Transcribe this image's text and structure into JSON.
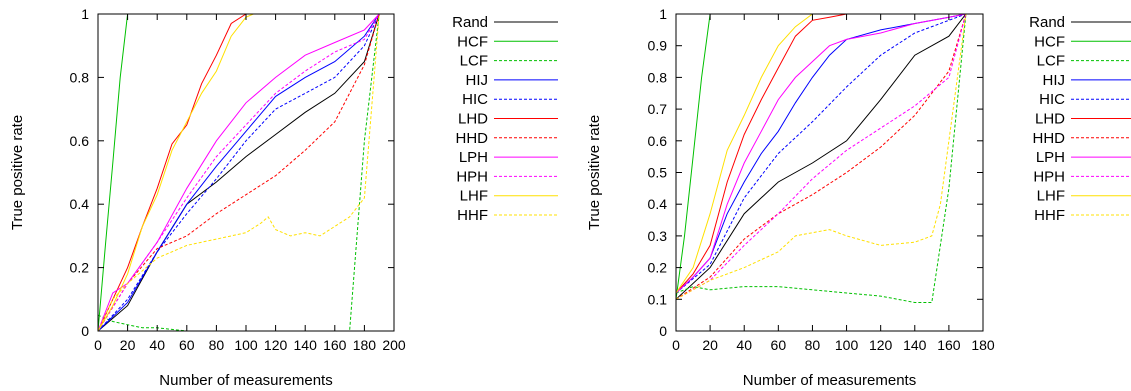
{
  "chart_data": [
    {
      "type": "line",
      "xlabel": "Number of measurements",
      "ylabel": "True positive rate",
      "xlim": [
        0,
        200
      ],
      "ylim": [
        0,
        1
      ],
      "xticks": [
        0,
        20,
        40,
        60,
        80,
        100,
        120,
        140,
        160,
        180,
        200
      ],
      "yticks": [
        0,
        0.2,
        0.4,
        0.6,
        0.8,
        1
      ],
      "ytick_labels": [
        "0",
        "0.2",
        "0.4",
        "0.6",
        "0.8",
        "1"
      ],
      "legend_position": "right",
      "grid": false,
      "series": [
        {
          "name": "Rand",
          "color": "#000000",
          "dash": "solid",
          "x": [
            0,
            20,
            40,
            60,
            80,
            100,
            120,
            140,
            160,
            180,
            190
          ],
          "y": [
            0,
            0.08,
            0.25,
            0.4,
            0.47,
            0.55,
            0.62,
            0.69,
            0.75,
            0.85,
            1.0
          ]
        },
        {
          "name": "HCF",
          "color": "#00c000",
          "dash": "solid",
          "x": [
            0,
            5,
            10,
            15,
            20
          ],
          "y": [
            0,
            0.27,
            0.53,
            0.8,
            1.0
          ]
        },
        {
          "name": "LCF",
          "color": "#00c000",
          "dash": "dashed",
          "x": [
            0,
            5,
            10,
            20,
            30,
            40,
            60,
            170,
            180,
            190
          ],
          "y": [
            0.05,
            0.04,
            0.03,
            0.02,
            0.01,
            0.01,
            0,
            0,
            0.6,
            1.0
          ]
        },
        {
          "name": "HIJ",
          "color": "#0000ff",
          "dash": "solid",
          "x": [
            0,
            20,
            40,
            60,
            80,
            100,
            120,
            140,
            160,
            180,
            190
          ],
          "y": [
            0,
            0.09,
            0.25,
            0.4,
            0.52,
            0.63,
            0.74,
            0.8,
            0.85,
            0.93,
            1.0
          ]
        },
        {
          "name": "HIC",
          "color": "#0000ff",
          "dash": "dashed",
          "x": [
            0,
            20,
            40,
            60,
            80,
            100,
            120,
            140,
            160,
            180,
            190
          ],
          "y": [
            0,
            0.1,
            0.25,
            0.37,
            0.48,
            0.6,
            0.7,
            0.75,
            0.8,
            0.9,
            1.0
          ]
        },
        {
          "name": "LHD",
          "color": "#ff0000",
          "dash": "solid",
          "x": [
            0,
            10,
            20,
            30,
            40,
            50,
            60,
            70,
            80,
            90,
            100
          ],
          "y": [
            0,
            0.1,
            0.2,
            0.33,
            0.45,
            0.59,
            0.65,
            0.78,
            0.87,
            0.97,
            1.0
          ]
        },
        {
          "name": "HHD",
          "color": "#ff0000",
          "dash": "dashed",
          "x": [
            0,
            20,
            40,
            60,
            80,
            100,
            120,
            140,
            160,
            180,
            190
          ],
          "y": [
            0,
            0.15,
            0.26,
            0.3,
            0.37,
            0.43,
            0.49,
            0.57,
            0.66,
            0.84,
            1.0
          ]
        },
        {
          "name": "LPH",
          "color": "#ff00ff",
          "dash": "solid",
          "x": [
            0,
            10,
            20,
            40,
            60,
            80,
            100,
            120,
            140,
            160,
            180,
            190
          ],
          "y": [
            0,
            0.12,
            0.15,
            0.28,
            0.45,
            0.6,
            0.72,
            0.8,
            0.87,
            0.91,
            0.95,
            1.0
          ]
        },
        {
          "name": "HPH",
          "color": "#ff00ff",
          "dash": "dashed",
          "x": [
            0,
            20,
            40,
            60,
            80,
            100,
            120,
            140,
            160,
            180,
            190
          ],
          "y": [
            0,
            0.15,
            0.28,
            0.42,
            0.55,
            0.65,
            0.75,
            0.82,
            0.88,
            0.92,
            1.0
          ]
        },
        {
          "name": "LHF",
          "color": "#ffe000",
          "dash": "solid",
          "x": [
            0,
            10,
            20,
            30,
            40,
            50,
            60,
            70,
            80,
            90,
            100,
            105
          ],
          "y": [
            0,
            0.08,
            0.18,
            0.33,
            0.43,
            0.57,
            0.66,
            0.75,
            0.82,
            0.93,
            0.99,
            1.0
          ]
        },
        {
          "name": "HHF",
          "color": "#ffe000",
          "dash": "dashed",
          "x": [
            0,
            10,
            20,
            30,
            40,
            50,
            60,
            70,
            80,
            90,
            100,
            110,
            115,
            120,
            130,
            140,
            150,
            160,
            170,
            180,
            190
          ],
          "y": [
            0,
            0.1,
            0.15,
            0.19,
            0.23,
            0.25,
            0.27,
            0.28,
            0.29,
            0.3,
            0.31,
            0.34,
            0.36,
            0.32,
            0.3,
            0.31,
            0.3,
            0.33,
            0.36,
            0.42,
            1.0
          ]
        }
      ]
    },
    {
      "type": "line",
      "xlabel": "Number of measurements",
      "ylabel": "True positive rate",
      "xlim": [
        0,
        180
      ],
      "ylim": [
        0,
        1
      ],
      "xticks": [
        0,
        20,
        40,
        60,
        80,
        100,
        120,
        140,
        160,
        180
      ],
      "yticks": [
        0,
        0.1,
        0.2,
        0.3,
        0.4,
        0.5,
        0.6,
        0.7,
        0.8,
        0.9,
        1
      ],
      "ytick_labels": [
        "0",
        "0.1",
        "0.2",
        "0.3",
        "0.4",
        "0.5",
        "0.6",
        "0.7",
        "0.8",
        "0.9",
        "1"
      ],
      "legend_position": "right",
      "grid": false,
      "series": [
        {
          "name": "Rand",
          "color": "#000000",
          "dash": "solid",
          "x": [
            0,
            20,
            40,
            60,
            80,
            100,
            120,
            140,
            160,
            170
          ],
          "y": [
            0.1,
            0.2,
            0.37,
            0.47,
            0.53,
            0.6,
            0.73,
            0.87,
            0.93,
            1.0
          ]
        },
        {
          "name": "HCF",
          "color": "#00c000",
          "dash": "solid",
          "x": [
            0,
            5,
            10,
            15,
            20
          ],
          "y": [
            0.1,
            0.3,
            0.55,
            0.8,
            1.0
          ]
        },
        {
          "name": "LCF",
          "color": "#00c000",
          "dash": "dashed",
          "x": [
            0,
            10,
            20,
            40,
            60,
            80,
            100,
            120,
            140,
            150,
            160,
            170
          ],
          "y": [
            0.12,
            0.14,
            0.13,
            0.14,
            0.14,
            0.13,
            0.12,
            0.11,
            0.09,
            0.09,
            0.45,
            1.0
          ]
        },
        {
          "name": "HIJ",
          "color": "#0000ff",
          "dash": "solid",
          "x": [
            0,
            10,
            20,
            30,
            40,
            50,
            60,
            70,
            80,
            90,
            100,
            120,
            140,
            160,
            170
          ],
          "y": [
            0.12,
            0.17,
            0.23,
            0.37,
            0.47,
            0.56,
            0.63,
            0.72,
            0.8,
            0.87,
            0.92,
            0.95,
            0.97,
            0.99,
            1.0
          ]
        },
        {
          "name": "HIC",
          "color": "#0000ff",
          "dash": "dashed",
          "x": [
            0,
            20,
            40,
            60,
            80,
            100,
            120,
            140,
            160,
            170
          ],
          "y": [
            0.12,
            0.21,
            0.42,
            0.56,
            0.66,
            0.77,
            0.87,
            0.94,
            0.98,
            1.0
          ]
        },
        {
          "name": "LHD",
          "color": "#ff0000",
          "dash": "solid",
          "x": [
            0,
            10,
            20,
            30,
            40,
            50,
            60,
            70,
            80,
            90,
            100
          ],
          "y": [
            0.12,
            0.18,
            0.27,
            0.47,
            0.62,
            0.73,
            0.83,
            0.93,
            0.98,
            0.99,
            1.0
          ]
        },
        {
          "name": "HHD",
          "color": "#ff0000",
          "dash": "dashed",
          "x": [
            0,
            20,
            40,
            60,
            80,
            100,
            120,
            140,
            160,
            170
          ],
          "y": [
            0.1,
            0.17,
            0.29,
            0.37,
            0.43,
            0.5,
            0.58,
            0.68,
            0.82,
            1.0
          ]
        },
        {
          "name": "LPH",
          "color": "#ff00ff",
          "dash": "solid",
          "x": [
            0,
            10,
            20,
            30,
            40,
            50,
            60,
            70,
            80,
            90,
            100,
            120,
            140,
            160,
            170
          ],
          "y": [
            0.12,
            0.17,
            0.23,
            0.4,
            0.53,
            0.63,
            0.73,
            0.8,
            0.85,
            0.9,
            0.92,
            0.94,
            0.97,
            0.99,
            1.0
          ]
        },
        {
          "name": "HPH",
          "color": "#ff00ff",
          "dash": "dashed",
          "x": [
            0,
            20,
            40,
            60,
            80,
            100,
            120,
            140,
            160,
            170
          ],
          "y": [
            0.1,
            0.16,
            0.27,
            0.37,
            0.48,
            0.57,
            0.64,
            0.71,
            0.8,
            1.0
          ]
        },
        {
          "name": "LHF",
          "color": "#ffe000",
          "dash": "solid",
          "x": [
            0,
            10,
            20,
            30,
            40,
            50,
            60,
            70,
            80
          ],
          "y": [
            0.12,
            0.2,
            0.37,
            0.57,
            0.68,
            0.8,
            0.9,
            0.96,
            1.0
          ]
        },
        {
          "name": "HHF",
          "color": "#ffe000",
          "dash": "dashed",
          "x": [
            0,
            20,
            40,
            60,
            70,
            80,
            90,
            100,
            120,
            140,
            150,
            155,
            160,
            170
          ],
          "y": [
            0.1,
            0.16,
            0.2,
            0.25,
            0.3,
            0.31,
            0.32,
            0.3,
            0.27,
            0.28,
            0.3,
            0.4,
            0.6,
            1.0
          ]
        }
      ]
    }
  ]
}
